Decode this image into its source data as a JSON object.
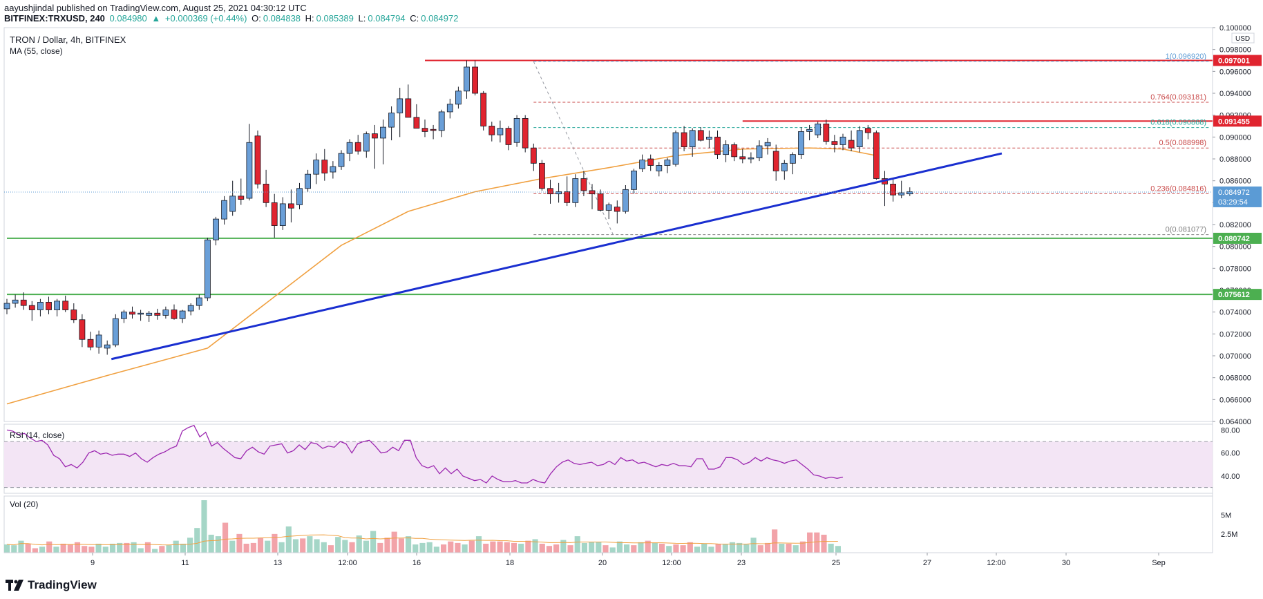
{
  "header": {
    "publisher": "aayushjindal",
    "published_text": "published on TradingView.com, August 25, 2021 04:30:12 UTC",
    "symbol": "BITFINEX:TRXUSD, 240",
    "last": "0.084980",
    "change": "+0.000369 (+0.44%)",
    "o_label": "O:",
    "o": "0.084838",
    "h_label": "H:",
    "h": "0.085389",
    "l_label": "L:",
    "l": "0.084794",
    "c_label": "C:",
    "c": "0.084972"
  },
  "colors": {
    "up": "#6a9fd8",
    "down": "#e0242f",
    "ma": "#f0a040",
    "trend": "#1a2fd0",
    "support": "#4caf50",
    "resistance": "#e0242f",
    "fib": "#c94a4a",
    "fib618": "#26a69a",
    "rsi": "#9c27b0",
    "vol_up": "#a5d6c7",
    "vol_down": "#f2a3a9"
  },
  "branding": {
    "logo_text": "TradingView"
  },
  "chart_data": [
    {
      "type": "candlestick",
      "title": "TRON / Dollar, 4h, BITFINEX",
      "indicator": "MA (55, close)",
      "currency": "USD",
      "ylim": [
        0.064,
        0.1
      ],
      "y_ticks": [
        "0.064000",
        "0.066000",
        "0.068000",
        "0.070000",
        "0.072000",
        "0.074000",
        "0.076000",
        "0.078000",
        "0.080000",
        "0.082000",
        "0.084000",
        "0.086000",
        "0.088000",
        "0.090000",
        "0.092000",
        "0.094000",
        "0.096000",
        "0.098000",
        "0.100000"
      ],
      "x_ticks": [
        "9",
        "11",
        "13",
        "12:00",
        "16",
        "18",
        "20",
        "12:00",
        "23",
        "25",
        "27",
        "12:00",
        "30",
        "Sep"
      ],
      "candles": [
        [
          0.0743,
          0.0752,
          0.0738,
          0.0748
        ],
        [
          0.0748,
          0.0756,
          0.0744,
          0.0751
        ],
        [
          0.0751,
          0.0758,
          0.0742,
          0.0746
        ],
        [
          0.0746,
          0.075,
          0.0732,
          0.0742
        ],
        [
          0.0742,
          0.0752,
          0.0736,
          0.0749
        ],
        [
          0.0749,
          0.0754,
          0.0738,
          0.0742
        ],
        [
          0.0742,
          0.0752,
          0.0736,
          0.075
        ],
        [
          0.075,
          0.0755,
          0.074,
          0.0742
        ],
        [
          0.0742,
          0.0748,
          0.073,
          0.0733
        ],
        [
          0.0733,
          0.0738,
          0.0708,
          0.0715
        ],
        [
          0.0715,
          0.0722,
          0.0705,
          0.0708
        ],
        [
          0.0708,
          0.0723,
          0.0702,
          0.0719
        ],
        [
          0.0707,
          0.0714,
          0.0701,
          0.071
        ],
        [
          0.071,
          0.0738,
          0.0708,
          0.0734
        ],
        [
          0.0734,
          0.0742,
          0.073,
          0.074
        ],
        [
          0.074,
          0.0745,
          0.0734,
          0.0738
        ],
        [
          0.0738,
          0.0742,
          0.0732,
          0.0739
        ],
        [
          0.0737,
          0.0741,
          0.0731,
          0.0739
        ],
        [
          0.0739,
          0.0743,
          0.0733,
          0.0737
        ],
        [
          0.0737,
          0.0745,
          0.0734,
          0.0742
        ],
        [
          0.0742,
          0.0747,
          0.0733,
          0.0734
        ],
        [
          0.0734,
          0.0742,
          0.073,
          0.0741
        ],
        [
          0.0741,
          0.0748,
          0.0737,
          0.0746
        ],
        [
          0.0746,
          0.0756,
          0.0742,
          0.0753
        ],
        [
          0.0753,
          0.0808,
          0.075,
          0.0806
        ],
        [
          0.0806,
          0.0827,
          0.0801,
          0.0825
        ],
        [
          0.0825,
          0.0846,
          0.082,
          0.0842
        ],
        [
          0.0832,
          0.086,
          0.0828,
          0.0846
        ],
        [
          0.0846,
          0.0862,
          0.0838,
          0.0843
        ],
        [
          0.0844,
          0.0912,
          0.0842,
          0.0895
        ],
        [
          0.0901,
          0.0906,
          0.0853,
          0.0857
        ],
        [
          0.0857,
          0.087,
          0.0836,
          0.084
        ],
        [
          0.084,
          0.0848,
          0.0808,
          0.0819
        ],
        [
          0.0819,
          0.0845,
          0.0815,
          0.0839
        ],
        [
          0.0839,
          0.0852,
          0.0822,
          0.0835
        ],
        [
          0.0838,
          0.0858,
          0.0834,
          0.0853
        ],
        [
          0.0853,
          0.087,
          0.085,
          0.0866
        ],
        [
          0.0866,
          0.0885,
          0.0857,
          0.0879
        ],
        [
          0.0879,
          0.0889,
          0.086,
          0.0867
        ],
        [
          0.0868,
          0.0878,
          0.0862,
          0.0873
        ],
        [
          0.0873,
          0.0888,
          0.087,
          0.0885
        ],
        [
          0.0885,
          0.0898,
          0.0878,
          0.0895
        ],
        [
          0.0895,
          0.0902,
          0.0884,
          0.0887
        ],
        [
          0.0887,
          0.0905,
          0.0881,
          0.0903
        ],
        [
          0.0903,
          0.0911,
          0.0871,
          0.0899
        ],
        [
          0.0899,
          0.0916,
          0.0875,
          0.0909
        ],
        [
          0.0909,
          0.0928,
          0.0897,
          0.0922
        ],
        [
          0.0922,
          0.0945,
          0.09,
          0.0935
        ],
        [
          0.0935,
          0.0948,
          0.0918,
          0.0918
        ],
        [
          0.0918,
          0.093,
          0.0908,
          0.0908
        ],
        [
          0.0908,
          0.0916,
          0.09,
          0.0905
        ],
        [
          0.0907,
          0.0911,
          0.0898,
          0.0906
        ],
        [
          0.0906,
          0.0925,
          0.09,
          0.0923
        ],
        [
          0.0923,
          0.0935,
          0.0917,
          0.093
        ],
        [
          0.093,
          0.0946,
          0.0926,
          0.0942
        ],
        [
          0.0942,
          0.097,
          0.0935,
          0.0964
        ],
        [
          0.0964,
          0.097,
          0.0938,
          0.094
        ],
        [
          0.094,
          0.0942,
          0.0906,
          0.091
        ],
        [
          0.091,
          0.0914,
          0.0896,
          0.0902
        ],
        [
          0.0902,
          0.0915,
          0.0895,
          0.0908
        ],
        [
          0.0908,
          0.091,
          0.0888,
          0.0893
        ],
        [
          0.0895,
          0.092,
          0.0891,
          0.0917
        ],
        [
          0.0917,
          0.092,
          0.0886,
          0.089
        ],
        [
          0.089,
          0.0894,
          0.0869,
          0.0876
        ],
        [
          0.0876,
          0.0879,
          0.0851,
          0.0853
        ],
        [
          0.0853,
          0.0861,
          0.0839,
          0.0848
        ],
        [
          0.0848,
          0.0858,
          0.084,
          0.085
        ],
        [
          0.085,
          0.0864,
          0.0837,
          0.084
        ],
        [
          0.084,
          0.0866,
          0.0836,
          0.0862
        ],
        [
          0.0862,
          0.0869,
          0.0846,
          0.0851
        ],
        [
          0.0851,
          0.0857,
          0.0834,
          0.0848
        ],
        [
          0.0848,
          0.0852,
          0.0832,
          0.0833
        ],
        [
          0.0833,
          0.084,
          0.0825,
          0.0838
        ],
        [
          0.0836,
          0.0842,
          0.0821,
          0.0832
        ],
        [
          0.0832,
          0.0856,
          0.083,
          0.0852
        ],
        [
          0.0852,
          0.0871,
          0.0848,
          0.0869
        ],
        [
          0.0871,
          0.0884,
          0.0868,
          0.0879
        ],
        [
          0.088,
          0.0884,
          0.0869,
          0.0874
        ],
        [
          0.0869,
          0.0877,
          0.0864,
          0.0874
        ],
        [
          0.0874,
          0.0881,
          0.0867,
          0.0879
        ],
        [
          0.0875,
          0.0906,
          0.0873,
          0.0904
        ],
        [
          0.0904,
          0.091,
          0.0887,
          0.0891
        ],
        [
          0.0891,
          0.0908,
          0.0882,
          0.0906
        ],
        [
          0.0906,
          0.0909,
          0.0896,
          0.0897
        ],
        [
          0.0898,
          0.0906,
          0.089,
          0.09
        ],
        [
          0.09,
          0.0906,
          0.088,
          0.0884
        ],
        [
          0.0884,
          0.0897,
          0.0877,
          0.0893
        ],
        [
          0.0893,
          0.0895,
          0.0878,
          0.0882
        ],
        [
          0.0882,
          0.0889,
          0.0876,
          0.088
        ],
        [
          0.088,
          0.0886,
          0.0876,
          0.0881
        ],
        [
          0.0881,
          0.0897,
          0.0878,
          0.0892
        ],
        [
          0.0892,
          0.0899,
          0.0884,
          0.0895
        ],
        [
          0.0887,
          0.0893,
          0.086,
          0.0869
        ],
        [
          0.0869,
          0.0879,
          0.0861,
          0.0876
        ],
        [
          0.0876,
          0.0886,
          0.0866,
          0.0884
        ],
        [
          0.0884,
          0.0909,
          0.088,
          0.0905
        ],
        [
          0.0905,
          0.0911,
          0.0897,
          0.0907
        ],
        [
          0.0902,
          0.0914,
          0.0899,
          0.0912
        ],
        [
          0.0912,
          0.0916,
          0.0893,
          0.0896
        ],
        [
          0.0896,
          0.0902,
          0.0886,
          0.0893
        ],
        [
          0.0893,
          0.0903,
          0.0888,
          0.09
        ],
        [
          0.0897,
          0.0906,
          0.0887,
          0.089
        ],
        [
          0.0891,
          0.091,
          0.0886,
          0.0906
        ],
        [
          0.0908,
          0.0911,
          0.0898,
          0.0904
        ],
        [
          0.0904,
          0.0906,
          0.0861,
          0.0862
        ],
        [
          0.0862,
          0.0869,
          0.0837,
          0.0857
        ],
        [
          0.0857,
          0.0862,
          0.0841,
          0.0847
        ],
        [
          0.0847,
          0.086,
          0.0844,
          0.0849
        ],
        [
          0.0848,
          0.0854,
          0.0846,
          0.085
        ]
      ],
      "ma_55": [
        [
          0,
          0.0656
        ],
        [
          12,
          0.0682
        ],
        [
          24,
          0.0707
        ],
        [
          32,
          0.0754
        ],
        [
          40,
          0.0801
        ],
        [
          48,
          0.0832
        ],
        [
          56,
          0.085
        ],
        [
          64,
          0.0862
        ],
        [
          72,
          0.0872
        ],
        [
          80,
          0.0883
        ],
        [
          88,
          0.0889
        ],
        [
          96,
          0.089
        ],
        [
          100,
          0.0889
        ],
        [
          104,
          0.0883
        ]
      ],
      "horizontal_levels": [
        {
          "price": 0.097,
          "label": "0.097001",
          "kind": "resistance",
          "x_start": 50
        },
        {
          "price": 0.091455,
          "label": "0.091455",
          "kind": "resistance",
          "x_start": 88
        },
        {
          "price": 0.080742,
          "label": "0.080742",
          "kind": "support",
          "x_start": 0
        },
        {
          "price": 0.075612,
          "label": "0.075612",
          "kind": "support",
          "x_start": 0
        }
      ],
      "last_price": {
        "label": "0.084972",
        "countdown": "03:29:54",
        "price": 0.084972
      },
      "trend_line": [
        [
          12.5,
          0.0697
        ],
        [
          119,
          0.0885
        ]
      ],
      "fib_levels": [
        {
          "ratio": "1",
          "price": 0.09692,
          "label": "1(0.096920)"
        },
        {
          "ratio": "0.764",
          "price": 0.093181,
          "label": "0.764(0.093181)"
        },
        {
          "ratio": "0.618",
          "price": 0.090868,
          "label": "0.618(0.090868)"
        },
        {
          "ratio": "0.5",
          "price": 0.088998,
          "label": "0.5(0.088998)"
        },
        {
          "ratio": "0.236",
          "price": 0.084816,
          "label": "0.236(0.084816)"
        },
        {
          "ratio": "0",
          "price": 0.081077,
          "label": "0(0.081077)"
        }
      ],
      "fib_anchor": [
        [
          63,
          0.0969
        ],
        [
          72.5,
          0.0811
        ]
      ]
    },
    {
      "type": "line",
      "title": "RSI (14, close)",
      "ylim": [
        25,
        85
      ],
      "y_ticks": [
        "40.00",
        "60.00",
        "80.00"
      ],
      "band": [
        30,
        70
      ],
      "values": [
        80,
        79,
        76,
        77,
        73,
        70,
        71,
        67,
        58,
        55,
        48,
        50,
        47,
        52,
        60,
        62,
        59,
        60,
        58,
        59,
        59,
        57,
        60,
        55,
        52,
        56,
        59,
        61,
        64,
        66,
        79,
        82,
        84,
        74,
        78,
        66,
        69,
        64,
        60,
        56,
        55,
        62,
        65,
        61,
        59,
        66,
        67,
        68,
        60,
        62,
        67,
        63,
        69,
        68,
        64,
        66,
        65,
        70,
        68,
        60,
        68,
        70,
        71,
        66,
        60,
        61,
        65,
        62,
        71,
        71,
        56,
        49,
        47,
        49,
        42,
        47,
        42,
        46,
        40,
        38,
        36,
        37,
        34,
        40,
        37,
        35,
        35,
        36,
        34,
        34,
        37,
        35,
        34,
        42,
        48,
        52,
        54,
        51,
        50,
        51,
        52,
        49,
        50,
        53,
        50,
        56,
        53,
        54,
        51,
        52,
        50,
        48,
        50,
        49,
        51,
        49,
        49,
        48,
        55,
        55,
        46,
        46,
        48,
        56,
        56,
        54,
        50,
        52,
        56,
        53,
        56,
        54,
        53,
        51,
        53,
        54,
        50,
        46,
        41,
        40,
        38,
        39,
        38,
        39
      ]
    },
    {
      "type": "bar",
      "title": "Vol (20)",
      "y_ticks": [
        "2.5M",
        "5M"
      ],
      "ylim": [
        0,
        7
      ],
      "values": [
        1.1,
        1.0,
        1.6,
        1.2,
        0.6,
        0.8,
        1.5,
        0.8,
        1.2,
        1.1,
        1.4,
        0.9,
        0.8,
        1.2,
        0.8,
        1.2,
        1.3,
        1.3,
        1.4,
        0.6,
        1.4,
        0.5,
        0.9,
        1.0,
        1.6,
        1.2,
        2.0,
        3.3,
        7.0,
        2.4,
        2.2,
        4.0,
        1.6,
        2.5,
        1.2,
        1.3,
        2.0,
        1.6,
        2.5,
        1.4,
        3.5,
        1.8,
        1.9,
        2.2,
        1.8,
        1.4,
        1.0,
        2.1,
        1.7,
        1.4,
        2.3,
        1.6,
        2.9,
        1.3,
        2.0,
        2.8,
        1.9,
        2.2,
        1.1,
        1.3,
        1.4,
        0.8,
        1.1,
        1.5,
        1.3,
        1.1,
        1.6,
        2.2,
        1.2,
        1.5,
        1.5,
        1.4,
        1.3,
        1.2,
        1.6,
        1.8,
        1.2,
        0.9,
        1.1,
        1.7,
        1.0,
        2.2,
        1.3,
        1.4,
        1.4,
        1.0,
        0.7,
        1.5,
        1.1,
        1.0,
        1.4,
        1.6,
        1.3,
        1.2,
        0.9,
        1.1,
        1.0,
        1.4,
        0.8,
        1.2,
        0.8,
        1.2,
        1.1,
        1.4,
        1.3,
        1.1,
        2.0,
        1.0,
        1.3,
        3.1,
        1.2,
        1.2,
        1.0,
        1.5,
        2.7,
        2.7,
        2.4,
        1.2,
        0.9
      ],
      "directions": "mixed"
    }
  ]
}
